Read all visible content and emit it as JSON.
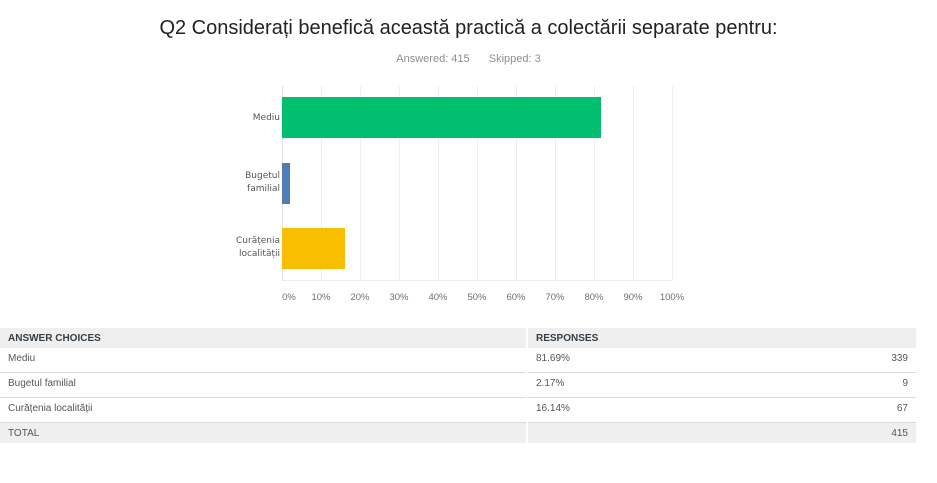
{
  "header": {
    "title": "Q2 Considerați benefică această practică a colectării separate pentru:",
    "answered_label": "Answered: 415",
    "skipped_label": "Skipped: 3"
  },
  "chart_data": {
    "type": "bar",
    "orientation": "horizontal",
    "title": "Q2 Considerați benefică această practică a colectării separate pentru:",
    "categories": [
      "Mediu",
      "Bugetul familial",
      "Curățenia localității"
    ],
    "values": [
      81.69,
      2.17,
      16.14
    ],
    "colors": [
      "#00bf6f",
      "#507cb6",
      "#f9be00"
    ],
    "xlabel": "",
    "ylabel": "",
    "xlim": [
      0,
      100
    ],
    "x_ticks": [
      "0%",
      "10%",
      "20%",
      "30%",
      "40%",
      "50%",
      "60%",
      "70%",
      "80%",
      "90%",
      "100%"
    ],
    "grid": true,
    "legend": null
  },
  "chart_labels": {
    "mediu": "Mediu",
    "bugetul_l1": "Bugetul",
    "bugetul_l2": "familial",
    "curatenia_l1": "Curățenia",
    "curatenia_l2": "localității"
  },
  "table": {
    "headers": [
      "ANSWER CHOICES",
      "RESPONSES"
    ],
    "rows": [
      {
        "choice": "Mediu",
        "percent": "81.69%",
        "count": "339"
      },
      {
        "choice": "Bugetul familial",
        "percent": "2.17%",
        "count": "9"
      },
      {
        "choice": "Curățenia localității",
        "percent": "16.14%",
        "count": "67"
      }
    ],
    "total_label": "TOTAL",
    "total_count": "415"
  }
}
